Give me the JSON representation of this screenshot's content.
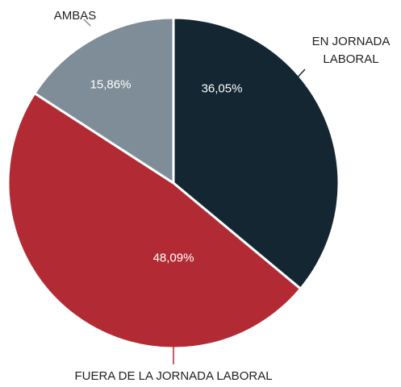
{
  "chart_data": {
    "type": "pie",
    "categories": [
      "EN JORNADA LABORAL",
      "FUERA DE LA JORNADA LABORAL",
      "AMBAS"
    ],
    "values": [
      36.05,
      48.09,
      15.86
    ],
    "value_labels": [
      "36,05%",
      "48,09%",
      "15,86%"
    ],
    "colors": [
      "#142632",
      "#b22b34",
      "#7e8d97"
    ]
  }
}
